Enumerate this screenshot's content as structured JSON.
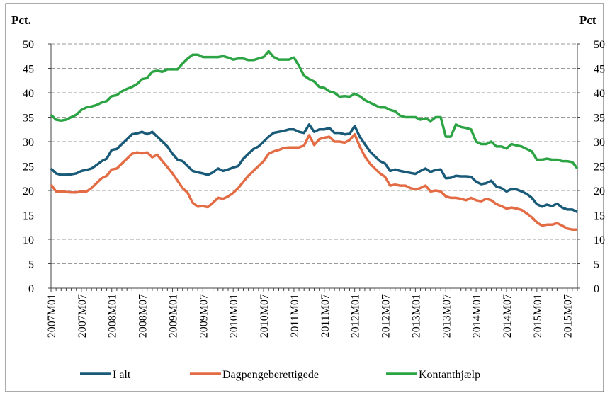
{
  "chart_data": {
    "type": "line",
    "y_label": "Pct.",
    "y2_label": "Pct",
    "categories": [
      "2007M01",
      null,
      null,
      null,
      null,
      null,
      "2007M07",
      null,
      null,
      null,
      null,
      null,
      "2008M01",
      null,
      null,
      null,
      null,
      null,
      "2008M07",
      null,
      null,
      null,
      null,
      null,
      "2009M01",
      null,
      null,
      null,
      null,
      null,
      "2009M07",
      null,
      null,
      null,
      null,
      null,
      "2010M01",
      null,
      null,
      null,
      null,
      null,
      "2010M07",
      null,
      null,
      null,
      null,
      null,
      "2011M01",
      null,
      null,
      null,
      null,
      null,
      "2011M07",
      null,
      null,
      null,
      null,
      null,
      "2012M01",
      null,
      null,
      null,
      null,
      null,
      "2012M07",
      null,
      null,
      null,
      null,
      null,
      "2013M01",
      null,
      null,
      null,
      null,
      null,
      "2013M07",
      null,
      null,
      null,
      null,
      null,
      "2014M01",
      null,
      null,
      null,
      null,
      null,
      "2014M07",
      null,
      null,
      null,
      null,
      null,
      "2015M01",
      null,
      null,
      null,
      null,
      null,
      "2015M07",
      null,
      null
    ],
    "series": [
      {
        "name": "I alt",
        "color": "#195a78",
        "values": [
          24.5,
          23.5,
          23.2,
          23.2,
          23.3,
          23.5,
          24,
          24.2,
          24.5,
          25.2,
          26,
          26.5,
          28.3,
          28.5,
          29.5,
          30.5,
          31.5,
          31.7,
          32,
          31.5,
          32,
          31,
          30,
          29,
          27.5,
          26.3,
          26,
          25,
          24,
          23.7,
          23.5,
          23.2,
          23.7,
          24.5,
          24,
          24.3,
          24.7,
          25,
          26.5,
          27.5,
          28.5,
          29,
          30,
          31,
          31.8,
          32,
          32.2,
          32.5,
          32.5,
          32,
          31.8,
          33.5,
          32,
          32.5,
          32.5,
          32.8,
          31.8,
          31.8,
          31.5,
          31.6,
          33.2,
          31,
          29.5,
          28,
          27,
          26,
          25.5,
          24,
          24.3,
          24,
          23.8,
          23.6,
          23.4,
          24,
          24.5,
          23.8,
          24.2,
          24.3,
          22.5,
          22.6,
          23,
          22.9,
          22.9,
          22.8,
          21.8,
          21.3,
          21.5,
          22,
          20.8,
          20.5,
          19.8,
          20.3,
          20.2,
          19.8,
          19.3,
          18.5,
          17.2,
          16.7,
          17.1,
          16.8,
          17.3,
          16.5,
          16.1,
          16.1,
          15.6
        ]
      },
      {
        "name": "Dagpengeberettigede",
        "color": "#e36c45",
        "values": [
          21.2,
          19.8,
          19.8,
          19.7,
          19.6,
          19.6,
          19.8,
          19.8,
          20.5,
          21.5,
          22.5,
          23,
          24.3,
          24.5,
          25.5,
          26.5,
          27.5,
          27.8,
          27.6,
          27.8,
          26.8,
          27.3,
          26,
          24.8,
          23.5,
          22,
          20.5,
          19.5,
          17.5,
          16.7,
          16.8,
          16.6,
          17.5,
          18.5,
          18.3,
          18.8,
          19.5,
          20.5,
          21.8,
          23,
          24,
          25,
          26,
          27.5,
          28,
          28.3,
          28.7,
          28.8,
          28.8,
          28.8,
          29.2,
          31.3,
          29.3,
          30.5,
          30.8,
          31,
          30,
          30,
          29.8,
          30.3,
          31.5,
          29,
          27,
          25.5,
          24.5,
          23.5,
          22.8,
          21,
          21.2,
          21,
          21,
          20.5,
          20.2,
          20.5,
          21,
          19.8,
          20,
          19.8,
          18.8,
          18.5,
          18.5,
          18.3,
          18,
          18.5,
          18,
          17.8,
          18.3,
          18,
          17.2,
          16.8,
          16.3,
          16.5,
          16.3,
          16,
          15.3,
          14.5,
          13.5,
          12.8,
          13,
          13,
          13.3,
          12.8,
          12.2,
          12,
          12
        ]
      },
      {
        "name": "Kontanthjælp",
        "color": "#2ca444",
        "values": [
          35.5,
          34.5,
          34.3,
          34.5,
          35,
          35.5,
          36.5,
          37,
          37.2,
          37.5,
          38,
          38.3,
          39.3,
          39.5,
          40.3,
          40.8,
          41.2,
          41.8,
          42.8,
          43,
          44.3,
          44.5,
          44.3,
          44.8,
          44.8,
          44.8,
          46,
          47,
          47.8,
          47.8,
          47.3,
          47.3,
          47.3,
          47.3,
          47.5,
          47.2,
          46.8,
          47,
          47,
          46.7,
          46.7,
          47,
          47.3,
          48.5,
          47.3,
          46.8,
          46.8,
          46.8,
          47.2,
          45.5,
          43.5,
          42.8,
          42.3,
          41.2,
          41,
          40.3,
          40,
          39.2,
          39.3,
          39.2,
          39.8,
          39.3,
          38.5,
          38,
          37.5,
          37,
          37,
          36.5,
          36.2,
          35.3,
          35,
          35,
          35,
          34.5,
          34.8,
          34.2,
          35,
          35,
          31,
          31,
          33.5,
          33,
          32.8,
          32.5,
          30,
          29.5,
          29.5,
          30,
          29,
          29,
          28.6,
          29.5,
          29.2,
          29,
          28.5,
          28,
          26.3,
          26.3,
          26.5,
          26.3,
          26.3,
          26,
          26,
          25.8,
          24.5
        ]
      }
    ],
    "ylim": [
      0,
      50
    ],
    "yticks": [
      0,
      5,
      10,
      15,
      20,
      25,
      30,
      35,
      40,
      45,
      50
    ],
    "y2lim": [
      0,
      50
    ],
    "y2ticks": [
      0,
      5,
      10,
      15,
      20,
      25,
      30,
      35,
      40,
      45,
      50
    ],
    "grid": true,
    "legend": "bottom"
  }
}
